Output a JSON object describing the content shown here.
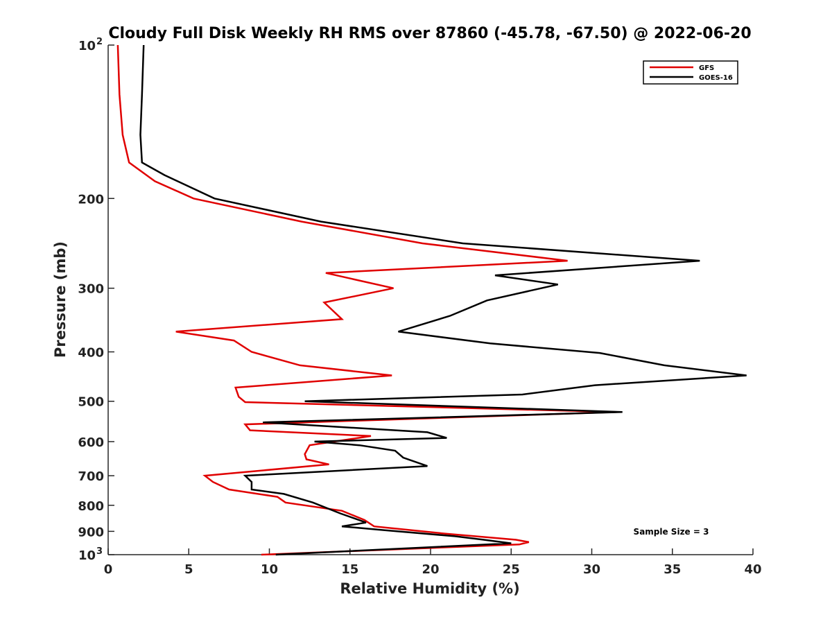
{
  "chart_data": {
    "type": "line",
    "title": "Cloudy Full Disk Weekly RH RMS over 87860 (-45.78, -67.50) @ 2022-06-20",
    "xlabel": "Relative Humidity (%)",
    "ylabel": "Pressure (mb)",
    "xlim": [
      0,
      40
    ],
    "ylim": [
      100,
      1000
    ],
    "y_scale": "log",
    "y_reversed": true,
    "grid": false,
    "legend_position": "top-right",
    "x_ticks": [
      "0",
      "5",
      "10",
      "15",
      "20",
      "25",
      "30",
      "35",
      "40"
    ],
    "y_ticks": [
      {
        "value": 100,
        "label": "10",
        "sup": "2"
      },
      {
        "value": 200,
        "label": "200",
        "sup": ""
      },
      {
        "value": 300,
        "label": "300",
        "sup": ""
      },
      {
        "value": 400,
        "label": "400",
        "sup": ""
      },
      {
        "value": 500,
        "label": "500",
        "sup": ""
      },
      {
        "value": 600,
        "label": "600",
        "sup": ""
      },
      {
        "value": 700,
        "label": "700",
        "sup": ""
      },
      {
        "value": 800,
        "label": "800",
        "sup": ""
      },
      {
        "value": 900,
        "label": "900",
        "sup": ""
      },
      {
        "value": 1000,
        "label": "10",
        "sup": "3"
      }
    ],
    "annotation": "Sample Size = 3",
    "series": [
      {
        "name": "GFS",
        "color": "#e00000",
        "points": [
          [
            0.6,
            100
          ],
          [
            0.7,
            125
          ],
          [
            0.9,
            150
          ],
          [
            1.3,
            170
          ],
          [
            2.9,
            185
          ],
          [
            5.3,
            200
          ],
          [
            12.0,
            222
          ],
          [
            19.5,
            245
          ],
          [
            28.5,
            265
          ],
          [
            13.5,
            280
          ],
          [
            17.7,
            300
          ],
          [
            13.4,
            320
          ],
          [
            14.5,
            345
          ],
          [
            4.2,
            365
          ],
          [
            7.8,
            380
          ],
          [
            8.9,
            400
          ],
          [
            11.9,
            425
          ],
          [
            17.6,
            445
          ],
          [
            7.9,
            470
          ],
          [
            8.1,
            490
          ],
          [
            8.5,
            502
          ],
          [
            31.5,
            525
          ],
          [
            8.5,
            555
          ],
          [
            8.8,
            570
          ],
          [
            16.3,
            585
          ],
          [
            12.5,
            610
          ],
          [
            12.2,
            635
          ],
          [
            12.3,
            650
          ],
          [
            13.7,
            665
          ],
          [
            6.0,
            700
          ],
          [
            6.5,
            720
          ],
          [
            7.5,
            745
          ],
          [
            10.5,
            770
          ],
          [
            11.0,
            790
          ],
          [
            14.5,
            820
          ],
          [
            15.9,
            855
          ],
          [
            16.5,
            880
          ],
          [
            21.0,
            910
          ],
          [
            25.3,
            935
          ],
          [
            26.1,
            945
          ],
          [
            25.5,
            955
          ],
          [
            9.5,
            1000
          ]
        ]
      },
      {
        "name": "GOES-16",
        "color": "#000000",
        "points": [
          [
            2.2,
            100
          ],
          [
            2.1,
            125
          ],
          [
            2.0,
            150
          ],
          [
            2.1,
            170
          ],
          [
            3.5,
            180
          ],
          [
            6.6,
            200
          ],
          [
            13.2,
            222
          ],
          [
            22.0,
            245
          ],
          [
            36.7,
            265
          ],
          [
            24.0,
            283
          ],
          [
            27.9,
            295
          ],
          [
            23.5,
            317
          ],
          [
            21.2,
            340
          ],
          [
            18.0,
            365
          ],
          [
            23.7,
            385
          ],
          [
            30.5,
            402
          ],
          [
            34.5,
            425
          ],
          [
            39.6,
            445
          ],
          [
            30.2,
            465
          ],
          [
            25.7,
            485
          ],
          [
            12.2,
            500
          ],
          [
            31.9,
            525
          ],
          [
            9.6,
            550
          ],
          [
            19.8,
            575
          ],
          [
            21.0,
            590
          ],
          [
            12.8,
            600
          ],
          [
            15.6,
            610
          ],
          [
            17.8,
            625
          ],
          [
            18.3,
            645
          ],
          [
            19.8,
            670
          ],
          [
            8.5,
            700
          ],
          [
            8.9,
            720
          ],
          [
            8.9,
            745
          ],
          [
            10.9,
            760
          ],
          [
            12.7,
            790
          ],
          [
            14.4,
            830
          ],
          [
            16.0,
            865
          ],
          [
            14.5,
            880
          ],
          [
            17.1,
            895
          ],
          [
            21.5,
            920
          ],
          [
            23.3,
            935
          ],
          [
            25.0,
            950
          ],
          [
            10.4,
            1000
          ]
        ]
      }
    ]
  }
}
